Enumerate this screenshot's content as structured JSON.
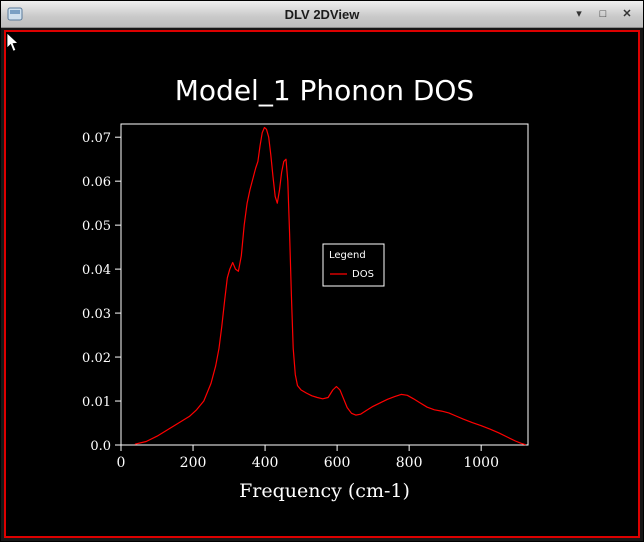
{
  "window": {
    "title": "DLV 2DView",
    "controls": {
      "minimize_glyph": "▾",
      "maximize_glyph": "□",
      "close_glyph": "✕"
    }
  },
  "colors": {
    "view_border": "#dd0000",
    "curve": "#ff0000",
    "plot_foreground": "#ffffff",
    "view_background": "#000000"
  },
  "chart_data": {
    "type": "line",
    "title": "Model_1 Phonon DOS",
    "xlabel": "Frequency (cm-1)",
    "ylabel": "",
    "xlim": [
      0,
      1130
    ],
    "ylim": [
      0,
      0.073
    ],
    "x_ticks": [
      0,
      200,
      400,
      600,
      800,
      1000
    ],
    "x_tick_labels": [
      "0",
      "200",
      "400",
      "600",
      "800",
      "1000"
    ],
    "y_ticks": [
      0,
      0.01,
      0.02,
      0.03,
      0.04,
      0.05,
      0.06,
      0.07
    ],
    "y_tick_labels": [
      "0.0",
      "0.01",
      "0.02",
      "0.03",
      "0.04",
      "0.05",
      "0.06",
      "0.07"
    ],
    "grid": false,
    "legend": {
      "title": "Legend",
      "position": "inside-right-middle",
      "entries": [
        {
          "label": "DOS",
          "color": "#ff0000"
        }
      ]
    },
    "series": [
      {
        "name": "DOS",
        "color": "#ff0000",
        "points": [
          [
            40,
            0.0002
          ],
          [
            70,
            0.0008
          ],
          [
            100,
            0.002
          ],
          [
            130,
            0.0035
          ],
          [
            160,
            0.005
          ],
          [
            190,
            0.0065
          ],
          [
            210,
            0.008
          ],
          [
            230,
            0.01
          ],
          [
            250,
            0.014
          ],
          [
            263,
            0.018
          ],
          [
            272,
            0.022
          ],
          [
            280,
            0.027
          ],
          [
            288,
            0.033
          ],
          [
            295,
            0.038
          ],
          [
            302,
            0.04
          ],
          [
            310,
            0.0415
          ],
          [
            318,
            0.04
          ],
          [
            326,
            0.0395
          ],
          [
            334,
            0.043
          ],
          [
            342,
            0.05
          ],
          [
            350,
            0.055
          ],
          [
            358,
            0.058
          ],
          [
            366,
            0.0605
          ],
          [
            374,
            0.063
          ],
          [
            380,
            0.0645
          ],
          [
            386,
            0.068
          ],
          [
            392,
            0.071
          ],
          [
            398,
            0.0722
          ],
          [
            404,
            0.0718
          ],
          [
            410,
            0.07
          ],
          [
            416,
            0.066
          ],
          [
            422,
            0.061
          ],
          [
            428,
            0.0565
          ],
          [
            434,
            0.055
          ],
          [
            440,
            0.058
          ],
          [
            446,
            0.062
          ],
          [
            452,
            0.0645
          ],
          [
            458,
            0.065
          ],
          [
            463,
            0.06
          ],
          [
            468,
            0.048
          ],
          [
            473,
            0.034
          ],
          [
            478,
            0.022
          ],
          [
            484,
            0.016
          ],
          [
            490,
            0.0135
          ],
          [
            500,
            0.0125
          ],
          [
            515,
            0.0118
          ],
          [
            530,
            0.0112
          ],
          [
            545,
            0.0108
          ],
          [
            560,
            0.0105
          ],
          [
            575,
            0.0108
          ],
          [
            588,
            0.0125
          ],
          [
            598,
            0.0133
          ],
          [
            608,
            0.0125
          ],
          [
            618,
            0.0105
          ],
          [
            628,
            0.0085
          ],
          [
            640,
            0.0072
          ],
          [
            652,
            0.0068
          ],
          [
            665,
            0.007
          ],
          [
            680,
            0.0078
          ],
          [
            700,
            0.0088
          ],
          [
            720,
            0.0096
          ],
          [
            740,
            0.0104
          ],
          [
            760,
            0.011
          ],
          [
            778,
            0.0115
          ],
          [
            795,
            0.0113
          ],
          [
            812,
            0.0105
          ],
          [
            830,
            0.0096
          ],
          [
            850,
            0.0086
          ],
          [
            870,
            0.008
          ],
          [
            890,
            0.0077
          ],
          [
            910,
            0.0073
          ],
          [
            930,
            0.0066
          ],
          [
            950,
            0.0059
          ],
          [
            975,
            0.0051
          ],
          [
            1000,
            0.0044
          ],
          [
            1025,
            0.0036
          ],
          [
            1050,
            0.0027
          ],
          [
            1075,
            0.0017
          ],
          [
            1095,
            0.0009
          ],
          [
            1110,
            0.0004
          ],
          [
            1122,
            0.0001
          ]
        ]
      }
    ]
  }
}
